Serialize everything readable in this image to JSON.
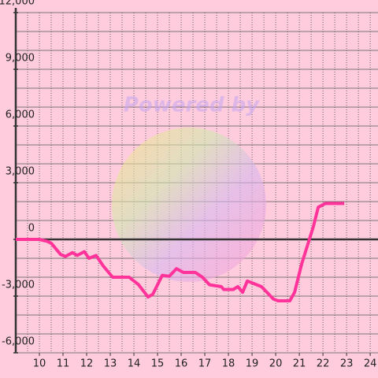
{
  "chart_data": {
    "type": "line",
    "watermark": "Powered by",
    "x": [
      9.0,
      10.0,
      10.33,
      10.5,
      10.9,
      11.1,
      11.4,
      11.6,
      11.9,
      12.1,
      12.4,
      12.7,
      13.1,
      13.8,
      14.2,
      14.6,
      14.8,
      15.2,
      15.5,
      15.8,
      16.1,
      16.6,
      16.9,
      17.2,
      17.7,
      17.8,
      18.2,
      18.4,
      18.6,
      18.8,
      19.4,
      19.9,
      20.1,
      20.6,
      20.8,
      21.1,
      21.3,
      21.6,
      21.8,
      22.1,
      22.9
    ],
    "series": [
      {
        "color": "#ff3399",
        "values": [
          0,
          0,
          -100,
          -200,
          -800,
          -900,
          -700,
          -850,
          -650,
          -1000,
          -850,
          -1400,
          -2000,
          -2000,
          -2400,
          -3050,
          -2900,
          -1900,
          -1950,
          -1550,
          -1750,
          -1750,
          -2000,
          -2400,
          -2500,
          -2650,
          -2650,
          -2500,
          -2800,
          -2200,
          -2500,
          -3150,
          -3250,
          -3250,
          -2800,
          -1300,
          -500,
          700,
          1700,
          1900,
          1900
        ]
      }
    ],
    "xlim": [
      9,
      24.33
    ],
    "xticks": [
      10,
      11,
      12,
      13,
      14,
      15,
      16,
      17,
      18,
      19,
      20,
      21,
      22,
      23,
      24
    ],
    "ylim": [
      -6000,
      12000
    ],
    "yticks": [
      {
        "value": 12000,
        "label": "12,000"
      },
      {
        "value": 9000,
        "label": "9,000"
      },
      {
        "value": 6000,
        "label": "6,000"
      },
      {
        "value": 3000,
        "label": "3,000"
      },
      0,
      {
        "value": -3000,
        "label": "-3,000"
      },
      {
        "value": -6000,
        "label": "-6,000"
      }
    ],
    "y_grid_step": 1000,
    "x_grid_step": 0.5,
    "grid": true
  }
}
